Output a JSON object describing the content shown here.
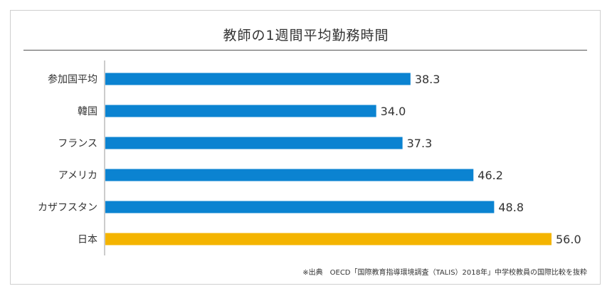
{
  "chart_data": {
    "type": "bar",
    "orientation": "horizontal",
    "title": "教師の1週間平均勤務時間",
    "categories": [
      "参加国平均",
      "韓国",
      "フランス",
      "アメリカ",
      "カザフスタン",
      "日本"
    ],
    "values": [
      38.3,
      34.0,
      37.3,
      46.2,
      48.8,
      56.0
    ],
    "value_labels": [
      "38.3",
      "34.0",
      "37.3",
      "46.2",
      "48.8",
      "56.0"
    ],
    "xlim": [
      0,
      56.0
    ],
    "grid": false,
    "legend": "none",
    "colors": {
      "default_bar": "#0b83d1",
      "highlight_bar": "#f4b400",
      "axis": "#999999"
    },
    "highlight_category": "日本"
  },
  "source_note": "※出典　OECD「国際教育指導環境調査（TALIS）2018年」中学校教員の国際比較を抜粋"
}
